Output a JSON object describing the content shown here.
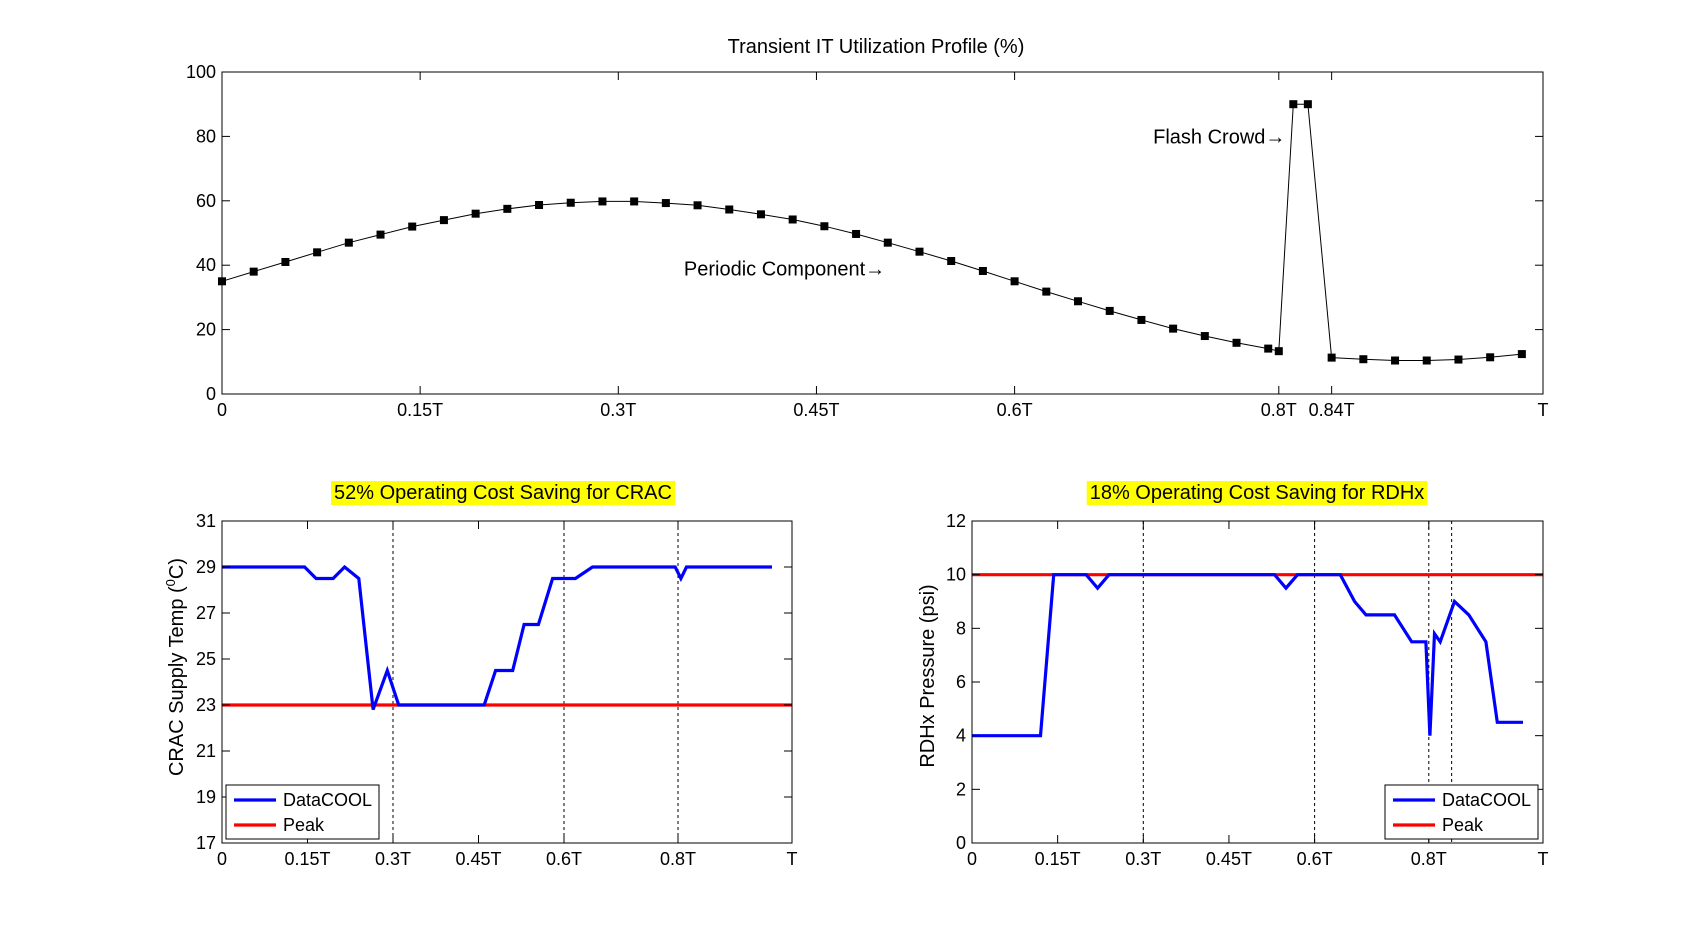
{
  "colors": {
    "datacool": "#0000ff",
    "peak": "#ff0000",
    "highlight": "#ffff00",
    "marker": "#000000"
  },
  "chart_data": [
    {
      "type": "line",
      "title": "Transient IT Utilization Profile (%)",
      "xlabel": "",
      "ylabel": "",
      "xlim": [
        0,
        1
      ],
      "ylim": [
        0,
        100
      ],
      "x_ticks": [
        {
          "value": 0,
          "label": "0"
        },
        {
          "value": 0.15,
          "label": "0.15T"
        },
        {
          "value": 0.3,
          "label": "0.3T"
        },
        {
          "value": 0.45,
          "label": "0.45T"
        },
        {
          "value": 0.6,
          "label": "0.6T"
        },
        {
          "value": 0.8,
          "label": "0.8T"
        },
        {
          "value": 0.84,
          "label": "0.84T"
        },
        {
          "value": 1,
          "label": "T"
        }
      ],
      "y_ticks": [
        0,
        20,
        40,
        60,
        80,
        100
      ],
      "grid": false,
      "series": [
        {
          "marker": "square",
          "color": "#000000",
          "points": [
            [
              0,
              35
            ],
            [
              0.024,
              38
            ],
            [
              0.048,
              41
            ],
            [
              0.072,
              44
            ],
            [
              0.096,
              47
            ],
            [
              0.12,
              49.5
            ],
            [
              0.144,
              52
            ],
            [
              0.168,
              54
            ],
            [
              0.192,
              56
            ],
            [
              0.216,
              57.5
            ],
            [
              0.24,
              58.7
            ],
            [
              0.264,
              59.4
            ],
            [
              0.288,
              59.8
            ],
            [
              0.312,
              59.8
            ],
            [
              0.336,
              59.3
            ],
            [
              0.36,
              58.6
            ],
            [
              0.384,
              57.3
            ],
            [
              0.408,
              55.8
            ],
            [
              0.432,
              54.2
            ],
            [
              0.456,
              52.1
            ],
            [
              0.48,
              49.7
            ],
            [
              0.504,
              47
            ],
            [
              0.528,
              44.2
            ],
            [
              0.552,
              41.3
            ],
            [
              0.576,
              38.2
            ],
            [
              0.6,
              35
            ],
            [
              0.624,
              31.8
            ],
            [
              0.648,
              28.8
            ],
            [
              0.672,
              25.8
            ],
            [
              0.696,
              23
            ],
            [
              0.72,
              20.3
            ],
            [
              0.744,
              18
            ],
            [
              0.768,
              15.9
            ],
            [
              0.792,
              14.1
            ],
            [
              0.8,
              13.3
            ],
            [
              0.811,
              90
            ],
            [
              0.822,
              90
            ],
            [
              0.84,
              11.3
            ],
            [
              0.864,
              10.8
            ],
            [
              0.888,
              10.4
            ],
            [
              0.912,
              10.4
            ],
            [
              0.936,
              10.7
            ],
            [
              0.96,
              11.4
            ],
            [
              0.984,
              12.4
            ]
          ]
        }
      ],
      "annotations": [
        {
          "text": "Flash Crowd→",
          "x": 0.805,
          "y": 80
        },
        {
          "text": "Periodic Component→",
          "x": 0.502,
          "y": 39
        }
      ]
    },
    {
      "type": "line",
      "title": "52% Operating Cost Saving for CRAC",
      "xlabel": "",
      "ylabel_main": "CRAC Supply Temp (",
      "ylabel_sup": "0",
      "ylabel_tail": "C)",
      "xlim": [
        0,
        1
      ],
      "ylim": [
        17,
        31
      ],
      "x_ticks": [
        {
          "value": 0,
          "label": "0"
        },
        {
          "value": 0.15,
          "label": "0.15T"
        },
        {
          "value": 0.3,
          "label": "0.3T"
        },
        {
          "value": 0.45,
          "label": "0.45T"
        },
        {
          "value": 0.6,
          "label": "0.6T"
        },
        {
          "value": 0.8,
          "label": "0.8T"
        },
        {
          "value": 1,
          "label": "T"
        }
      ],
      "y_ticks": [
        17,
        19,
        21,
        23,
        25,
        27,
        29,
        31
      ],
      "vlines": [
        0.3,
        0.6,
        0.8
      ],
      "grid": false,
      "legend_position": "bottom-left",
      "series": [
        {
          "name": "DataCOOL",
          "color": "#0000ff",
          "points": [
            [
              0,
              29
            ],
            [
              0.145,
              29
            ],
            [
              0.165,
              28.5
            ],
            [
              0.195,
              28.5
            ],
            [
              0.215,
              29
            ],
            [
              0.24,
              28.5
            ],
            [
              0.265,
              22.8
            ],
            [
              0.29,
              24.5
            ],
            [
              0.31,
              23
            ],
            [
              0.46,
              23
            ],
            [
              0.48,
              24.5
            ],
            [
              0.51,
              24.5
            ],
            [
              0.53,
              26.5
            ],
            [
              0.555,
              26.5
            ],
            [
              0.58,
              28.5
            ],
            [
              0.62,
              28.5
            ],
            [
              0.65,
              29
            ],
            [
              0.795,
              29
            ],
            [
              0.805,
              28.5
            ],
            [
              0.815,
              29
            ],
            [
              0.965,
              29
            ]
          ]
        },
        {
          "name": "Peak",
          "color": "#ff0000",
          "points": [
            [
              0,
              23
            ],
            [
              1,
              23
            ]
          ]
        }
      ]
    },
    {
      "type": "line",
      "title": "18% Operating Cost Saving for RDHx",
      "xlabel": "",
      "ylabel": "RDHx Pressure (psi)",
      "xlim": [
        0,
        1
      ],
      "ylim": [
        0,
        12
      ],
      "x_ticks": [
        {
          "value": 0,
          "label": "0"
        },
        {
          "value": 0.15,
          "label": "0.15T"
        },
        {
          "value": 0.3,
          "label": "0.3T"
        },
        {
          "value": 0.45,
          "label": "0.45T"
        },
        {
          "value": 0.6,
          "label": "0.6T"
        },
        {
          "value": 0.8,
          "label": "0.8T"
        },
        {
          "value": 1,
          "label": "T"
        }
      ],
      "y_ticks": [
        0,
        2,
        4,
        6,
        8,
        10,
        12
      ],
      "vlines": [
        0.3,
        0.6,
        0.8,
        0.84
      ],
      "grid": false,
      "legend_position": "bottom-right",
      "series": [
        {
          "name": "DataCOOL",
          "color": "#0000ff",
          "points": [
            [
              0,
              4
            ],
            [
              0.12,
              4
            ],
            [
              0.143,
              10
            ],
            [
              0.2,
              10
            ],
            [
              0.22,
              9.5
            ],
            [
              0.24,
              10
            ],
            [
              0.53,
              10
            ],
            [
              0.55,
              9.5
            ],
            [
              0.57,
              10
            ],
            [
              0.645,
              10
            ],
            [
              0.67,
              9
            ],
            [
              0.69,
              8.5
            ],
            [
              0.74,
              8.5
            ],
            [
              0.77,
              7.5
            ],
            [
              0.795,
              7.5
            ],
            [
              0.802,
              4
            ],
            [
              0.81,
              7.8
            ],
            [
              0.82,
              7.5
            ],
            [
              0.845,
              9
            ],
            [
              0.87,
              8.5
            ],
            [
              0.9,
              7.5
            ],
            [
              0.92,
              4.5
            ],
            [
              0.965,
              4.5
            ]
          ]
        },
        {
          "name": "Peak",
          "color": "#ff0000",
          "points": [
            [
              0,
              10
            ],
            [
              1,
              10
            ]
          ]
        }
      ]
    }
  ]
}
